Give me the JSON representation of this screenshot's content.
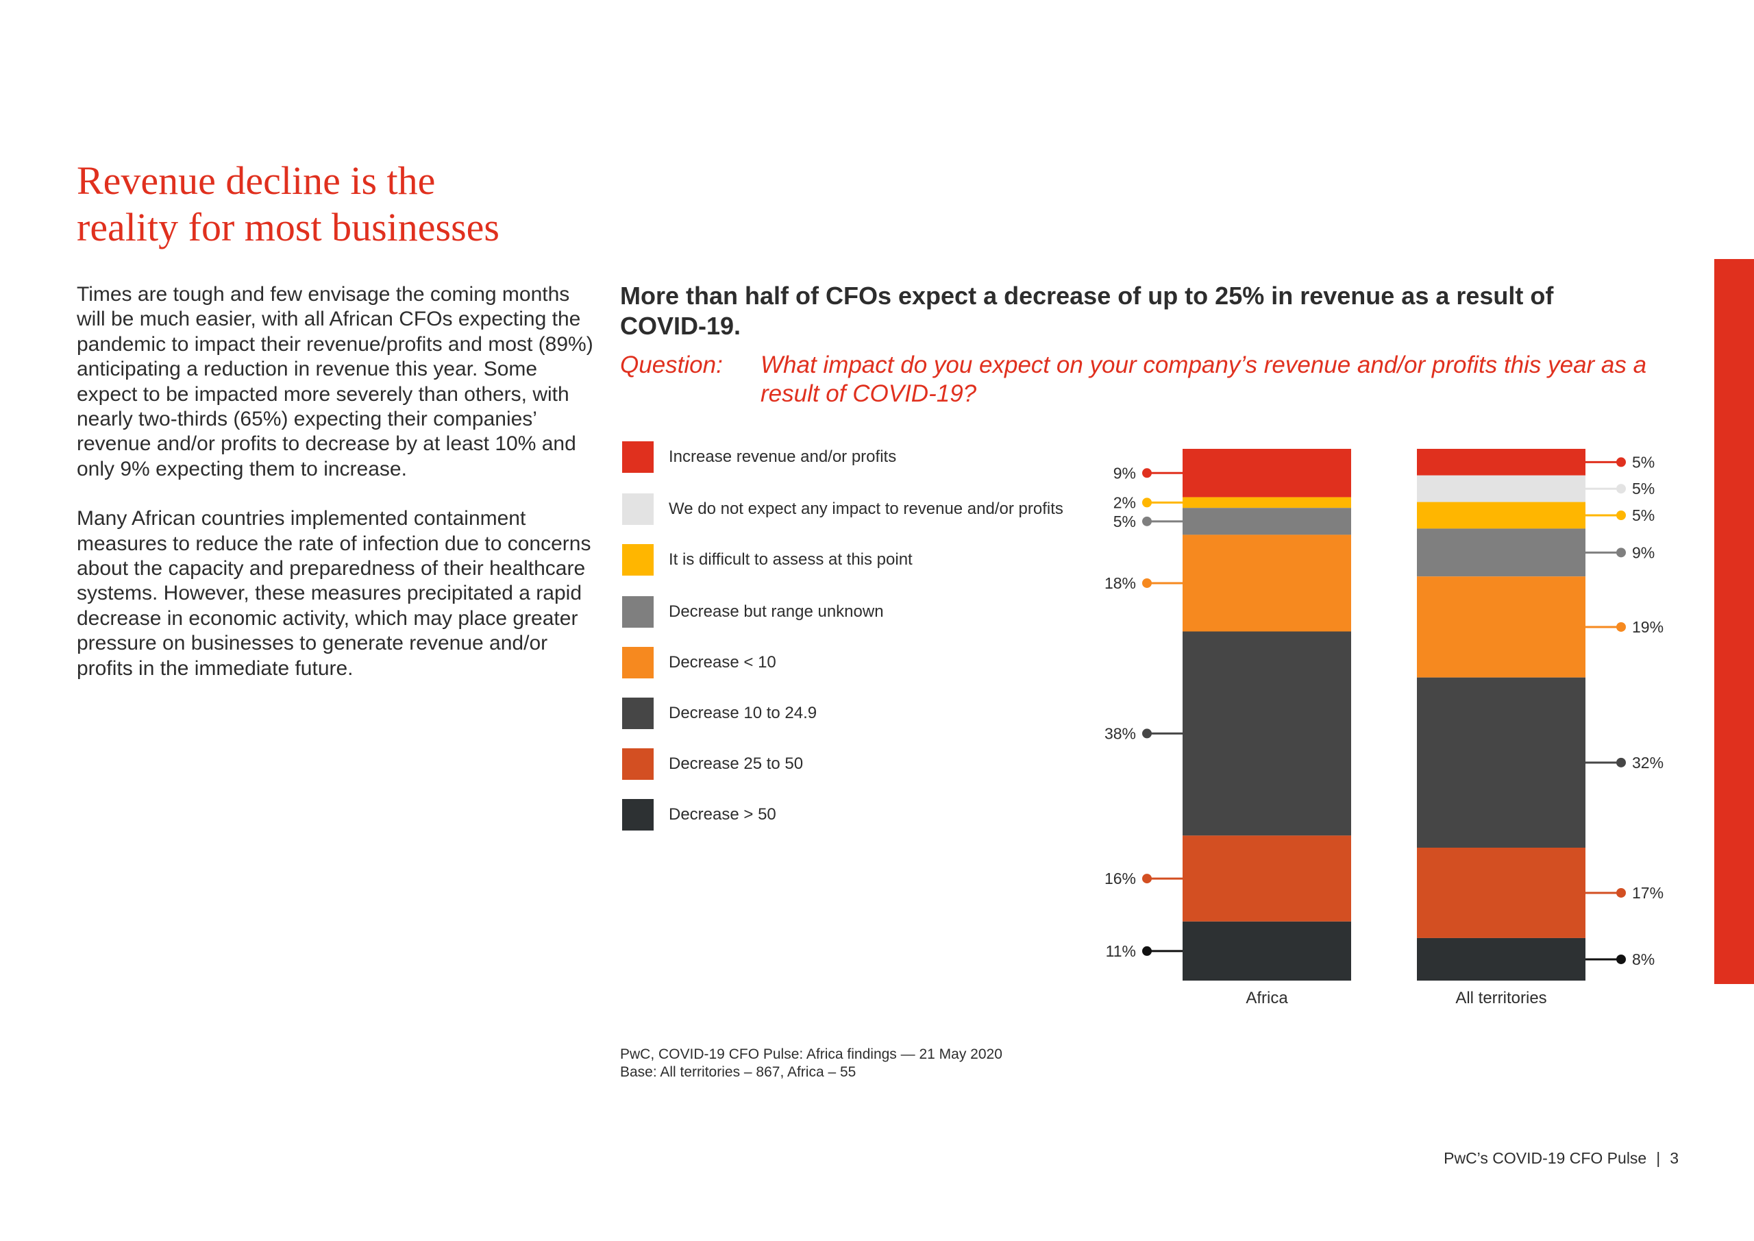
{
  "title_lines": [
    "Revenue decline is the",
    "reality for most businesses"
  ],
  "paragraphs": [
    "Times are tough and few envisage the coming months will be much easier, with all African CFOs expecting the pandemic to impact their revenue/profits and most (89%) anticipating a reduction in revenue this year. Some expect to be impacted more severely than others, with nearly two-thirds (65%) expecting their companies’ revenue and/or profits to decrease by at least 10% and only 9% expecting them to increase.",
    "Many African countries implemented containment measures to reduce the rate of infection due to concerns about the capacity and preparedness of their healthcare systems. However, these measures precipitated a rapid decrease in economic activity, which may place greater pressure on businesses to generate revenue and/or profits in the immediate future."
  ],
  "chart_heading": "More than half of CFOs expect a decrease of up to 25% in revenue as a result of COVID-19.",
  "question_label": "Question:",
  "question_text": "What impact do you expect on your company’s revenue and/or profits this year as a result of COVID-19?",
  "chart_data": {
    "type": "bar",
    "stacked": true,
    "categories": [
      "Africa",
      "All territories"
    ],
    "series": [
      {
        "name": "Increase revenue and/or profits",
        "color": "#e0301e",
        "values": [
          9,
          5
        ]
      },
      {
        "name": "We do not expect any impact to revenue and/or profits",
        "color": "#e3e3e3",
        "values": [
          0,
          5
        ]
      },
      {
        "name": "It is difficult to assess at this point",
        "color": "#ffb600",
        "values": [
          2,
          5
        ]
      },
      {
        "name": "Decrease but range unknown",
        "color": "#7f7f7f",
        "values": [
          5,
          9
        ]
      },
      {
        "name": "Decrease < 10",
        "color": "#f6891f",
        "values": [
          18,
          19
        ]
      },
      {
        "name": "Decrease 10 to 24.9",
        "color": "#464646",
        "values": [
          38,
          32
        ]
      },
      {
        "name": "Decrease 25 to 50",
        "color": "#d34f22",
        "values": [
          16,
          17
        ]
      },
      {
        "name": "Decrease > 50",
        "color": "#2d3133",
        "values": [
          11,
          8
        ]
      }
    ],
    "labels": {
      "Africa": [
        "9%",
        "",
        "2%",
        "5%",
        "18%",
        "38%",
        "16%",
        "11%"
      ],
      "All territories": [
        "5%",
        "5%",
        "5%",
        "9%",
        "19%",
        "32%",
        "17%",
        "8%"
      ]
    },
    "marker_colors": [
      "#e0301e",
      "#e3e3e3",
      "#ffb600",
      "#7f7f7f",
      "#f6891f",
      "#464646",
      "#d34f22",
      "#111111"
    ],
    "ylim": [
      0,
      100
    ],
    "legend_position": "left"
  },
  "source_lines": [
    "PwC, COVID-19 CFO Pulse: Africa findings — 21 May 2020",
    "Base: All territories – 867, Africa – 55"
  ],
  "footer": {
    "label": "PwC’s COVID-19 CFO Pulse",
    "separator": "|",
    "page": "3"
  }
}
